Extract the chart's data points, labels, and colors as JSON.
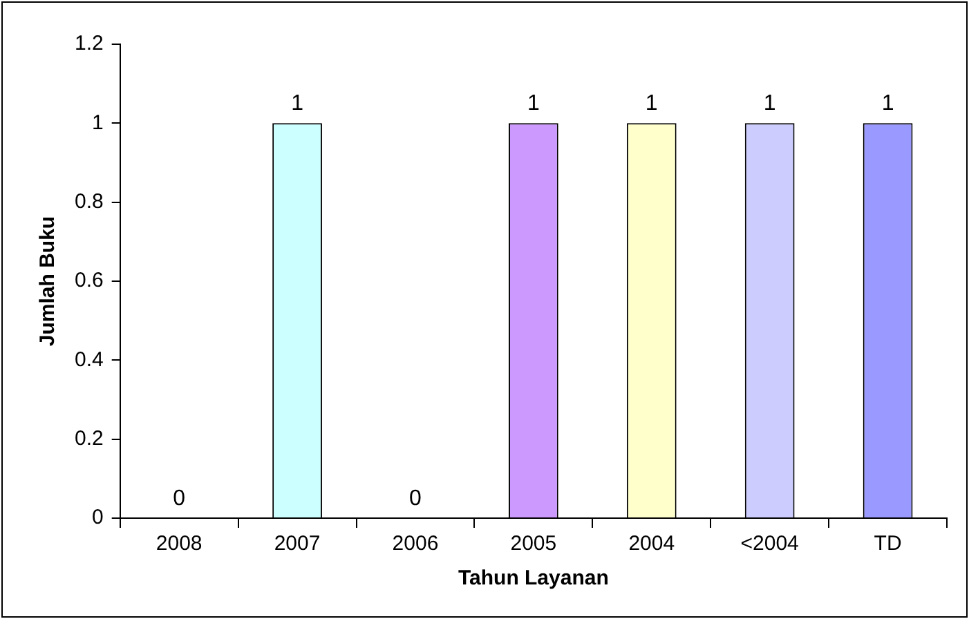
{
  "chart_data": {
    "type": "bar",
    "categories": [
      "2008",
      "2007",
      "2006",
      "2005",
      "2004",
      "<2004",
      "TD"
    ],
    "values": [
      0,
      1,
      0,
      1,
      1,
      1,
      1
    ],
    "colors": [
      "#9999ff",
      "#ccffff",
      "#993366",
      "#cc99ff",
      "#ffffcc",
      "#ccccff",
      "#9999ff"
    ],
    "xlabel": "Tahun Layanan",
    "ylabel": "Jumlah Buku",
    "ylim": [
      0,
      1.2
    ],
    "yticks": [
      0,
      0.2,
      0.4,
      0.6,
      0.8,
      1,
      1.2
    ],
    "data_labels": true,
    "grid": false,
    "legend": false
  }
}
